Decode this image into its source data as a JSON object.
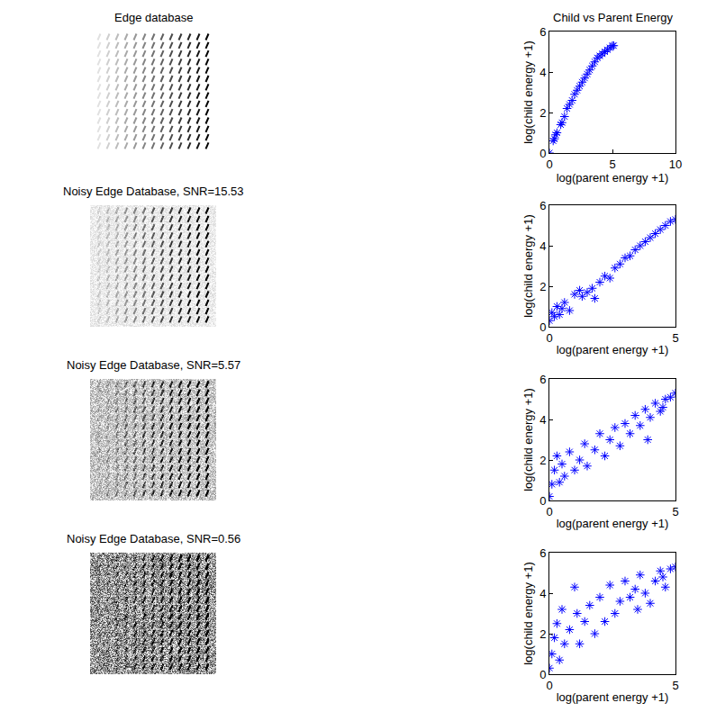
{
  "images": [
    {
      "title": "Edge database"
    },
    {
      "title": "Noisy Edge Database, SNR=15.53"
    },
    {
      "title": "Noisy Edge Database, SNR=5.57"
    },
    {
      "title": "Noisy Edge Database, SNR=0.56"
    }
  ],
  "chart_data": [
    {
      "type": "scatter",
      "title": "Child vs Parent Energy",
      "x_label": "log(parent energy +1)",
      "y_label": "log(child energy +1)",
      "color": "#0000ff",
      "marker": "asterisk",
      "grid": false,
      "xlim": [
        0,
        10
      ],
      "ylim": [
        0,
        6
      ],
      "xticks": [
        0,
        5,
        10
      ],
      "yticks": [
        0,
        2,
        4,
        6
      ],
      "x": [
        0,
        0.3,
        0.4,
        0.5,
        0.6,
        0.9,
        1.0,
        1.2,
        1.4,
        1.6,
        1.8,
        2.0,
        2.2,
        2.4,
        2.6,
        2.8,
        3.0,
        3.2,
        3.4,
        3.6,
        3.8,
        4.0,
        4.2,
        4.4,
        4.6,
        4.8,
        5.0,
        5.1
      ],
      "values": [
        0,
        0.6,
        0.7,
        0.9,
        1.0,
        1.4,
        1.5,
        1.8,
        2.2,
        2.4,
        2.6,
        2.9,
        3.1,
        3.3,
        3.5,
        3.7,
        3.9,
        4.1,
        4.3,
        4.5,
        4.7,
        4.8,
        4.9,
        5.0,
        5.1,
        5.2,
        5.3,
        5.3
      ]
    },
    {
      "type": "scatter",
      "x_label": "log(parent energy +1)",
      "y_label": "log(child energy +1)",
      "color": "#0000ff",
      "marker": "asterisk",
      "grid": false,
      "xlim": [
        0,
        5
      ],
      "ylim": [
        0,
        6
      ],
      "xticks": [
        0,
        5
      ],
      "yticks": [
        0,
        2,
        4,
        6
      ],
      "x": [
        0,
        0.1,
        0.2,
        0.3,
        0.4,
        0.5,
        0.6,
        0.8,
        1.0,
        1.2,
        1.3,
        1.5,
        1.7,
        1.8,
        2.0,
        2.2,
        2.4,
        2.6,
        2.8,
        3.0,
        3.2,
        3.4,
        3.6,
        3.8,
        4.0,
        4.2,
        4.4,
        4.6,
        4.8,
        5.0
      ],
      "values": [
        0.3,
        0.7,
        0.5,
        1.0,
        0.6,
        0.9,
        1.2,
        0.8,
        1.6,
        1.8,
        1.5,
        1.7,
        1.9,
        1.4,
        2.2,
        2.5,
        2.4,
        2.9,
        3.1,
        3.4,
        3.5,
        3.8,
        4.0,
        4.2,
        4.4,
        4.6,
        4.8,
        5.0,
        5.2,
        5.3
      ]
    },
    {
      "type": "scatter",
      "x_label": "log(parent energy +1)",
      "y_label": "log(child energy +1)",
      "color": "#0000ff",
      "marker": "asterisk",
      "grid": false,
      "xlim": [
        0,
        5
      ],
      "ylim": [
        0,
        6
      ],
      "xticks": [
        0,
        5
      ],
      "yticks": [
        0,
        2,
        4,
        6
      ],
      "x": [
        0,
        0.1,
        0.2,
        0.3,
        0.4,
        0.5,
        0.6,
        0.8,
        1.0,
        1.2,
        1.4,
        1.5,
        1.8,
        2.0,
        2.2,
        2.4,
        2.6,
        2.8,
        3.0,
        3.2,
        3.4,
        3.6,
        3.8,
        3.9,
        4.0,
        4.2,
        4.4,
        4.5,
        4.6,
        4.8,
        5.0
      ],
      "values": [
        0.2,
        0.8,
        1.5,
        2.2,
        0.9,
        1.8,
        1.2,
        2.4,
        1.5,
        2.0,
        2.8,
        1.7,
        2.5,
        3.3,
        2.2,
        3.0,
        3.6,
        2.7,
        3.8,
        3.3,
        4.2,
        3.7,
        4.5,
        3.0,
        4.1,
        4.8,
        4.4,
        4.6,
        5.0,
        5.1,
        5.3
      ]
    },
    {
      "type": "scatter",
      "x_label": "log(parent energy +1)",
      "y_label": "log(child energy +1)",
      "color": "#0000ff",
      "marker": "asterisk",
      "grid": false,
      "xlim": [
        0,
        5
      ],
      "ylim": [
        0,
        6
      ],
      "xticks": [
        0,
        5
      ],
      "yticks": [
        0,
        2,
        4,
        6
      ],
      "x": [
        0,
        0.1,
        0.2,
        0.3,
        0.4,
        0.5,
        0.6,
        0.8,
        1.0,
        1.1,
        1.2,
        1.4,
        1.6,
        1.8,
        2.0,
        2.2,
        2.4,
        2.6,
        2.8,
        3.0,
        3.2,
        3.4,
        3.5,
        3.6,
        3.8,
        4.0,
        4.2,
        4.4,
        4.5,
        4.6,
        4.8,
        5.0
      ],
      "values": [
        0.3,
        1.0,
        1.8,
        2.5,
        0.7,
        3.2,
        1.5,
        2.2,
        4.3,
        3.0,
        1.5,
        2.6,
        3.4,
        2.0,
        3.8,
        2.6,
        4.4,
        3.0,
        3.6,
        4.6,
        3.8,
        4.2,
        3.2,
        4.9,
        4.0,
        3.5,
        4.6,
        5.1,
        4.8,
        4.3,
        5.2,
        5.3
      ]
    }
  ]
}
